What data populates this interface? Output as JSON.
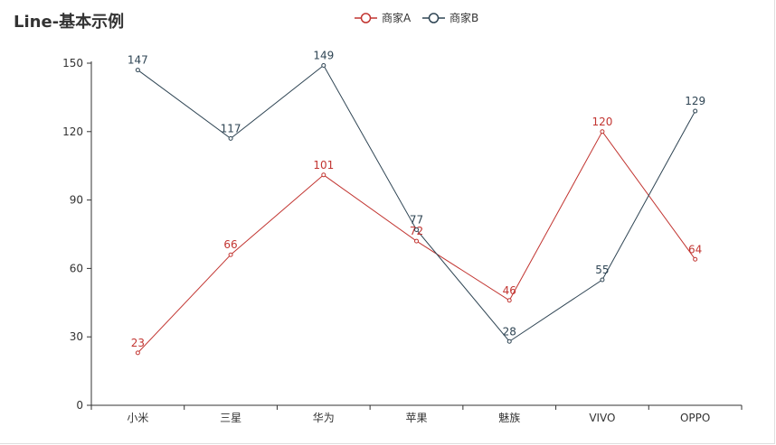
{
  "chart_data": {
    "type": "line",
    "title": "Line-基本示例",
    "categories": [
      "小米",
      "三星",
      "华为",
      "苹果",
      "魅族",
      "VIVO",
      "OPPO"
    ],
    "series": [
      {
        "name": "商家A",
        "color": "#c23531",
        "values": [
          23,
          66,
          101,
          72,
          46,
          120,
          64
        ]
      },
      {
        "name": "商家B",
        "color": "#2f4554",
        "values": [
          147,
          117,
          149,
          77,
          28,
          55,
          129
        ]
      }
    ],
    "yticks": [
      0,
      30,
      60,
      90,
      120,
      150
    ],
    "ylim": [
      0,
      150
    ],
    "xlabel": "",
    "ylabel": "",
    "legend_position": "top-center",
    "grid": false,
    "data_labels": true
  }
}
